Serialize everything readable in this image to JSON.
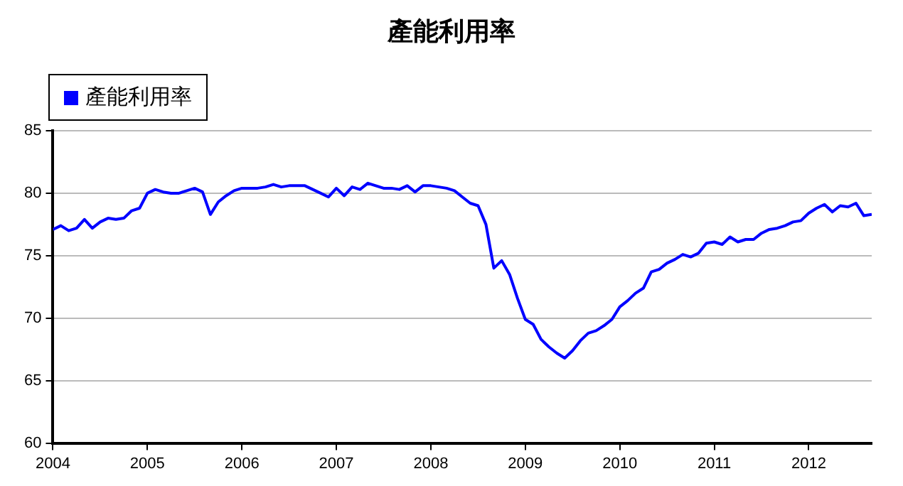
{
  "chart_data": {
    "type": "line",
    "title": "產能利用率",
    "legend": "top left",
    "grid": "y",
    "marker": "none",
    "line_style": "solid",
    "x": [
      "2004-01",
      "2004-02",
      "2004-03",
      "2004-04",
      "2004-05",
      "2004-06",
      "2004-07",
      "2004-08",
      "2004-09",
      "2004-10",
      "2004-11",
      "2004-12",
      "2005-01",
      "2005-02",
      "2005-03",
      "2005-04",
      "2005-05",
      "2005-06",
      "2005-07",
      "2005-08",
      "2005-09",
      "2005-10",
      "2005-11",
      "2005-12",
      "2006-01",
      "2006-02",
      "2006-03",
      "2006-04",
      "2006-05",
      "2006-06",
      "2006-07",
      "2006-08",
      "2006-09",
      "2006-10",
      "2006-11",
      "2006-12",
      "2007-01",
      "2007-02",
      "2007-03",
      "2007-04",
      "2007-05",
      "2007-06",
      "2007-07",
      "2007-08",
      "2007-09",
      "2007-10",
      "2007-11",
      "2007-12",
      "2008-01",
      "2008-02",
      "2008-03",
      "2008-04",
      "2008-05",
      "2008-06",
      "2008-07",
      "2008-08",
      "2008-09",
      "2008-10",
      "2008-11",
      "2008-12",
      "2009-01",
      "2009-02",
      "2009-03",
      "2009-04",
      "2009-05",
      "2009-06",
      "2009-07",
      "2009-08",
      "2009-09",
      "2009-10",
      "2009-11",
      "2009-12",
      "2010-01",
      "2010-02",
      "2010-03",
      "2010-04",
      "2010-05",
      "2010-06",
      "2010-07",
      "2010-08",
      "2010-09",
      "2010-10",
      "2010-11",
      "2010-12",
      "2011-01",
      "2011-02",
      "2011-03",
      "2011-04",
      "2011-05",
      "2011-06",
      "2011-07",
      "2011-08",
      "2011-09",
      "2011-10",
      "2011-11",
      "2011-12",
      "2012-01",
      "2012-02",
      "2012-03",
      "2012-04",
      "2012-05",
      "2012-06",
      "2012-07",
      "2012-08",
      "2012-09"
    ],
    "series": [
      {
        "name": "產能利用率",
        "color": "#0000ff",
        "values": [
          77.1,
          77.4,
          77.0,
          77.2,
          77.9,
          77.2,
          77.7,
          78.0,
          77.9,
          78.0,
          78.6,
          78.8,
          80.0,
          80.3,
          80.1,
          80.0,
          80.0,
          80.2,
          80.4,
          80.1,
          78.3,
          79.3,
          79.8,
          80.2,
          80.4,
          80.4,
          80.4,
          80.5,
          80.7,
          80.5,
          80.6,
          80.6,
          80.6,
          80.3,
          80.0,
          79.7,
          80.4,
          79.8,
          80.5,
          80.3,
          80.8,
          80.6,
          80.4,
          80.4,
          80.3,
          80.6,
          80.1,
          80.6,
          80.6,
          80.5,
          80.4,
          80.2,
          79.7,
          79.2,
          79.0,
          77.5,
          74.0,
          74.6,
          73.5,
          71.6,
          69.9,
          69.5,
          68.3,
          67.7,
          67.2,
          66.8,
          67.4,
          68.2,
          68.8,
          69.0,
          69.4,
          69.9,
          70.9,
          71.4,
          72.0,
          72.4,
          73.7,
          73.9,
          74.4,
          74.7,
          75.1,
          74.9,
          75.2,
          76.0,
          76.1,
          75.9,
          76.5,
          76.1,
          76.3,
          76.3,
          76.8,
          77.1,
          77.2,
          77.4,
          77.7,
          77.8,
          78.4,
          78.8,
          79.1,
          78.5,
          79.0,
          78.9,
          79.2,
          78.2,
          78.3
        ]
      }
    ],
    "xlim": [
      "2004-01",
      "2012-09"
    ],
    "xticks": [
      "2004",
      "2005",
      "2006",
      "2007",
      "2008",
      "2009",
      "2010",
      "2011",
      "2012"
    ],
    "ylim": [
      60,
      85
    ],
    "yticks": [
      60,
      65,
      70,
      75,
      80,
      85
    ]
  }
}
